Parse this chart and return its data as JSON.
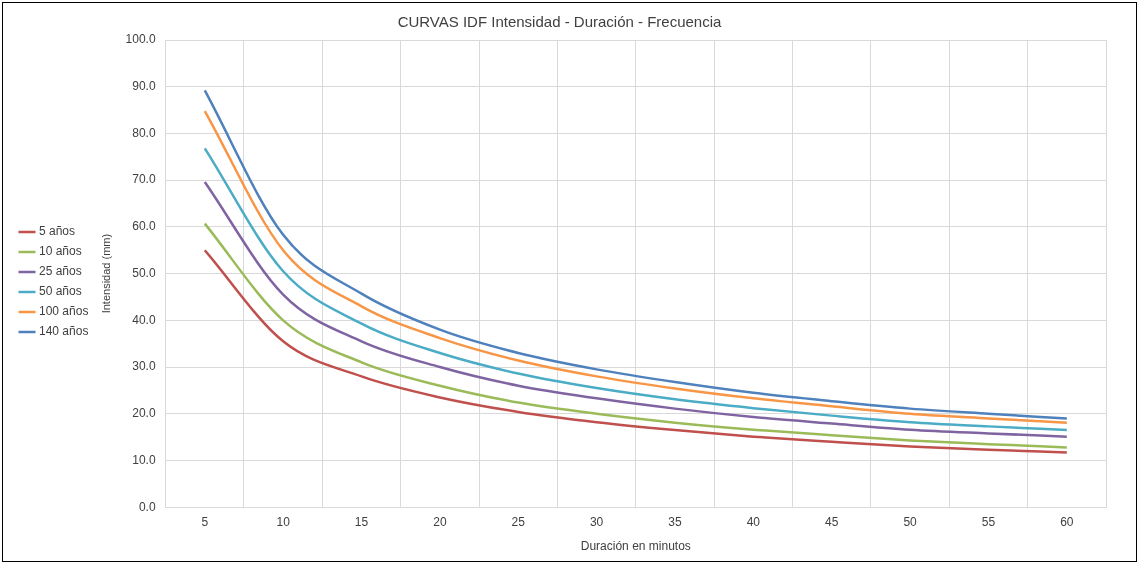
{
  "chart_data": {
    "type": "line",
    "title": "CURVAS IDF Intensidad - Duración - Frecuencia",
    "xlabel": "Duración en minutos",
    "ylabel": "Intensidad (mm)",
    "categories": [
      "5",
      "10",
      "15",
      "20",
      "25",
      "30",
      "35",
      "40",
      "45",
      "50",
      "55",
      "60"
    ],
    "series": [
      {
        "name": "5 años",
        "color": "#c0504d",
        "values": [
          55,
          35.5,
          28,
          23.5,
          20.4,
          18.2,
          16.5,
          15.1,
          14,
          13,
          12.3,
          11.7
        ]
      },
      {
        "name": "10 años",
        "color": "#9bbb59",
        "values": [
          60.7,
          40,
          31,
          26,
          22.4,
          20,
          18.1,
          16.6,
          15.4,
          14.3,
          13.5,
          12.8
        ]
      },
      {
        "name": "25 años",
        "color": "#8064a2",
        "values": [
          69.6,
          45.5,
          35.5,
          30,
          26,
          23.3,
          21.1,
          19.3,
          17.9,
          16.6,
          15.8,
          15.1
        ]
      },
      {
        "name": "50 años",
        "color": "#4bacc6",
        "values": [
          76.8,
          50.5,
          39.3,
          33,
          28.6,
          25.5,
          23.1,
          21.2,
          19.6,
          18.2,
          17.3,
          16.5
        ]
      },
      {
        "name": "100 años",
        "color": "#f79646",
        "values": [
          84.8,
          55,
          43,
          36.2,
          31.4,
          28,
          25.4,
          23.3,
          21.6,
          20,
          19,
          18.1
        ]
      },
      {
        "name": "140 años",
        "color": "#4f81bd",
        "values": [
          89.2,
          58.3,
          45.7,
          38,
          33,
          29.5,
          26.8,
          24.5,
          22.7,
          21.1,
          20,
          19
        ]
      }
    ],
    "ylim": [
      0,
      100
    ],
    "yticks": [
      {
        "value": 0,
        "label": "0.0"
      },
      {
        "value": 10,
        "label": "10.0"
      },
      {
        "value": 20,
        "label": "20.0"
      },
      {
        "value": 30,
        "label": "30.0"
      },
      {
        "value": 40,
        "label": "40.0"
      },
      {
        "value": 50,
        "label": "50.0"
      },
      {
        "value": 60,
        "label": "60.0"
      },
      {
        "value": 70,
        "label": "70.0"
      },
      {
        "value": 80,
        "label": "80.0"
      },
      {
        "value": 90,
        "label": "90.0"
      },
      {
        "value": 100,
        "label": "100.0"
      }
    ],
    "grid": true,
    "legend": "left",
    "marker": "none",
    "line_style": "solid"
  }
}
